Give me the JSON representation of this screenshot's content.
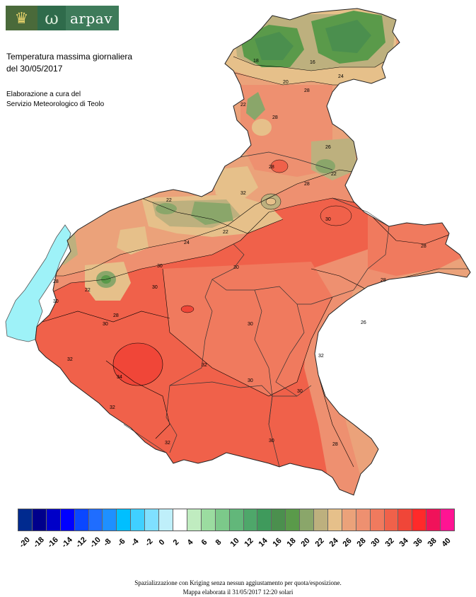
{
  "header": {
    "logo_word": "arpav",
    "title_line1": "Temperatura massima giornaliera",
    "title_line2": "del 30/05/2017",
    "credit_line1": "Elaborazione a cura del",
    "credit_line2": "Servizio Meteorologico di Teolo"
  },
  "legend": {
    "values": [
      "-20",
      "-18",
      "-16",
      "-14",
      "-12",
      "-10",
      "-8",
      "-6",
      "-4",
      "-2",
      "0",
      "2",
      "4",
      "6",
      "8",
      "10",
      "12",
      "14",
      "16",
      "18",
      "20",
      "22",
      "24",
      "26",
      "28",
      "30",
      "32",
      "34",
      "36",
      "38",
      "40"
    ],
    "colors": [
      "#002a8f",
      "#00008b",
      "#0000c8",
      "#0000ff",
      "#0a47ff",
      "#1f6dff",
      "#1e90ff",
      "#00bfff",
      "#40d0ff",
      "#7fe0ff",
      "#bfeffa",
      "#ffffff",
      "#c0ecc0",
      "#9bdca0",
      "#7cc98a",
      "#62b77a",
      "#4ea76a",
      "#3f9a5c",
      "#4b8f4e",
      "#5a9a4a",
      "#8aa66a",
      "#bdb07e",
      "#e6c08a",
      "#eba27a",
      "#ee9070",
      "#f07a5e",
      "#f0614a",
      "#f04638",
      "#ff2a2a",
      "#f0125a",
      "#ff1493"
    ]
  },
  "map": {
    "contour_labels": [
      "16",
      "18",
      "20",
      "22",
      "24",
      "26",
      "28",
      "30",
      "32",
      "34",
      "36"
    ]
  },
  "footer": {
    "line1": "Spazializzazione con Kriging senza nessun aggiustamento per quota/esposizione.",
    "line2": "Mappa elaborata il 31/05/2017 12:20 solari"
  }
}
